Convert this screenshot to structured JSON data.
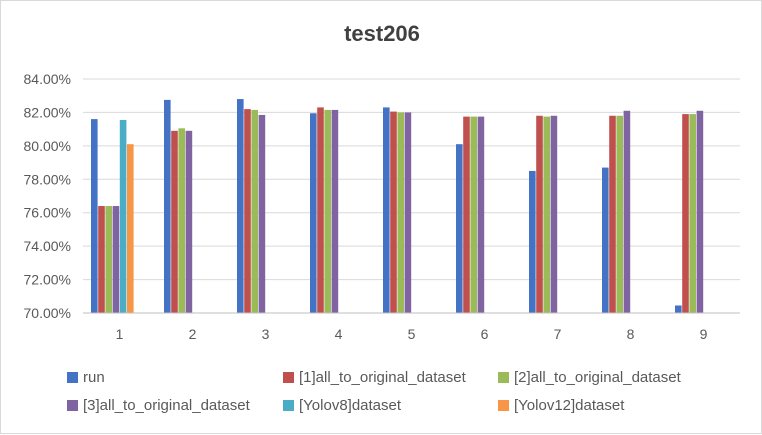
{
  "chart_data": {
    "type": "bar",
    "title": "test206",
    "xlabel": "",
    "ylabel": "",
    "categories": [
      "1",
      "2",
      "3",
      "4",
      "5",
      "6",
      "7",
      "8",
      "9"
    ],
    "ylim": [
      0.7,
      0.84
    ],
    "yticks": [
      0.7,
      0.72,
      0.74,
      0.76,
      0.78,
      0.8,
      0.82,
      0.84
    ],
    "ytick_labels": [
      "70.00%",
      "72.00%",
      "74.00%",
      "76.00%",
      "78.00%",
      "80.00%",
      "82.00%",
      "84.00%"
    ],
    "grid": true,
    "legend_position": "bottom",
    "series": [
      {
        "name": "run",
        "color": "#4472C4",
        "values": [
          0.816,
          0.8275,
          0.828,
          0.8195,
          0.823,
          0.801,
          0.785,
          0.787,
          0.7045
        ]
      },
      {
        "name": "[1]all_to_original_dataset",
        "color": "#C0504D",
        "values": [
          0.764,
          0.809,
          0.822,
          0.823,
          0.8205,
          0.8175,
          0.818,
          0.818,
          0.819
        ]
      },
      {
        "name": "[2]all_to_original_dataset",
        "color": "#9BBB59",
        "values": [
          0.764,
          0.8105,
          0.8215,
          0.8215,
          0.82,
          0.8175,
          0.8175,
          0.818,
          0.819
        ]
      },
      {
        "name": "[3]all_to_original_dataset",
        "color": "#8064A2",
        "values": [
          0.764,
          0.809,
          0.8185,
          0.8215,
          0.82,
          0.8175,
          0.818,
          0.821,
          0.821
        ]
      },
      {
        "name": "[Yolov8]dataset",
        "color": "#4BACC6",
        "values": [
          0.8155,
          null,
          null,
          null,
          null,
          null,
          null,
          null,
          null
        ]
      },
      {
        "name": "[Yolov12]dataset",
        "color": "#F79646",
        "values": [
          0.801,
          null,
          null,
          null,
          null,
          null,
          null,
          null,
          null
        ]
      }
    ]
  }
}
